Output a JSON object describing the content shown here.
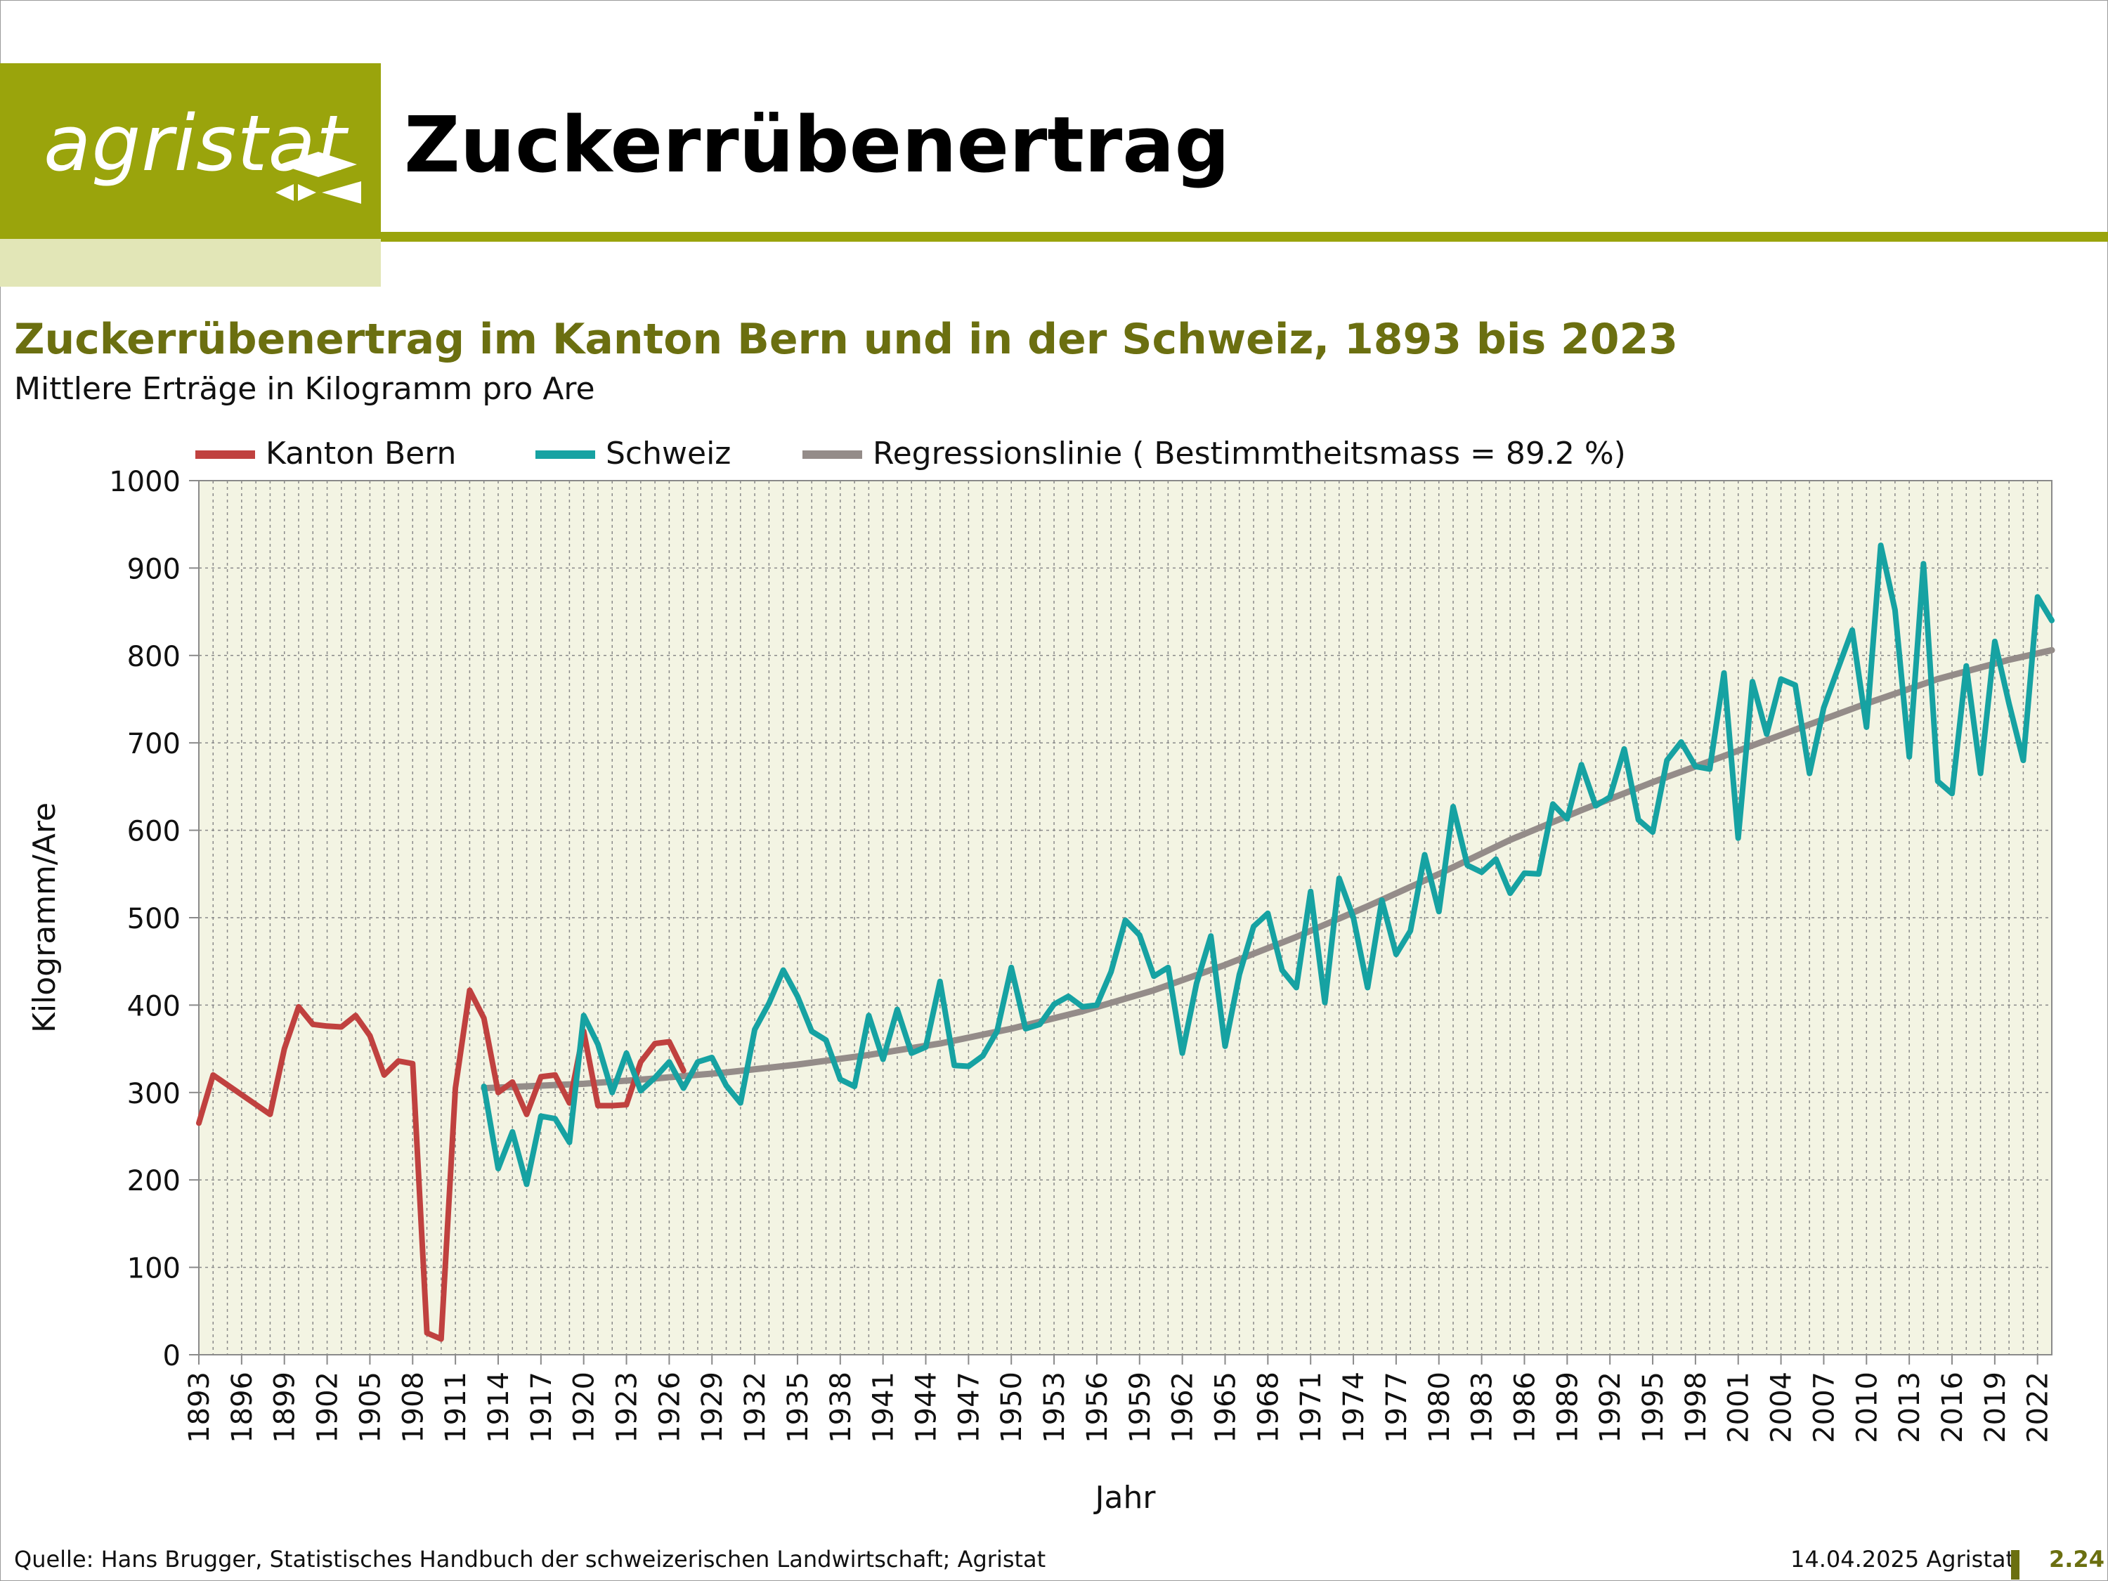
{
  "header": {
    "logo_text": "agristat",
    "title": "Zuckerrübenertrag"
  },
  "footer": {
    "source": "Quelle: Hans Brugger, Statistisches Handbuch der schweizerischen Landwirtschaft; Agristat",
    "date": "14.04.2025 Agristat",
    "page": "2.24"
  },
  "colors": {
    "brand": "#9aa40c",
    "brand_light": "#e2e6b7",
    "title": "#6b6f10",
    "plot_bg": "#f3f4e3",
    "bern": "#c0413f",
    "schweiz": "#16a2a2",
    "regression": "#948c89"
  },
  "chart_data": {
    "type": "line",
    "title": "Zuckerrübenertrag im Kanton Bern und in der Schweiz, 1893 bis 2023",
    "subtitle": "Mittlere Erträge in Kilogramm pro Are",
    "xlabel": "Jahr",
    "ylabel": "Kilogramm/Are",
    "xlim": [
      1893,
      2023
    ],
    "ylim": [
      0,
      1000
    ],
    "yticks": [
      0,
      100,
      200,
      300,
      400,
      500,
      600,
      700,
      800,
      900,
      1000
    ],
    "xticks": [
      "1893",
      "1896",
      "1899",
      "1902",
      "1905",
      "1908",
      "1911",
      "1914",
      "1917",
      "1920",
      "1923",
      "1926",
      "1929",
      "1932",
      "1935",
      "1938",
      "1941",
      "1944",
      "1947",
      "1950",
      "1953",
      "1956",
      "1959",
      "1962",
      "1965",
      "1968",
      "1971",
      "1974",
      "1977",
      "1980",
      "1983",
      "1986",
      "1989",
      "1992",
      "1995",
      "1998",
      "2001",
      "2004",
      "2007",
      "2010",
      "2013",
      "2016",
      "2019",
      "2022"
    ],
    "grid": true,
    "legend_position": "top",
    "series": [
      {
        "name": "Kanton Bern",
        "x": [
          1893,
          1894,
          1898,
          1899,
          1900,
          1901,
          1902,
          1903,
          1904,
          1905,
          1906,
          1907,
          1908,
          1909,
          1910,
          1911,
          1912,
          1913,
          1914,
          1915,
          1916,
          1917,
          1918,
          1919,
          1920,
          1921,
          1922,
          1923,
          1924,
          1925,
          1926,
          1927
        ],
        "y": [
          265,
          320,
          275,
          350,
          398,
          378,
          376,
          375,
          388,
          365,
          320,
          336,
          333,
          25,
          18,
          305,
          417,
          385,
          300,
          312,
          275,
          318,
          320,
          288,
          370,
          285,
          285,
          286,
          335,
          356,
          358,
          325
        ]
      },
      {
        "name": "Schweiz",
        "x": [
          1913,
          1914,
          1915,
          1916,
          1917,
          1918,
          1919,
          1920,
          1921,
          1922,
          1923,
          1924,
          1925,
          1926,
          1927,
          1928,
          1929,
          1930,
          1931,
          1932,
          1933,
          1934,
          1935,
          1936,
          1937,
          1938,
          1939,
          1940,
          1941,
          1942,
          1943,
          1944,
          1945,
          1946,
          1947,
          1948,
          1949,
          1950,
          1951,
          1952,
          1953,
          1954,
          1955,
          1956,
          1957,
          1958,
          1959,
          1960,
          1961,
          1962,
          1963,
          1964,
          1965,
          1966,
          1967,
          1968,
          1969,
          1970,
          1971,
          1972,
          1973,
          1974,
          1975,
          1976,
          1977,
          1978,
          1979,
          1980,
          1981,
          1982,
          1983,
          1984,
          1985,
          1986,
          1987,
          1988,
          1989,
          1990,
          1991,
          1992,
          1993,
          1994,
          1995,
          1996,
          1997,
          1998,
          1999,
          2000,
          2001,
          2002,
          2003,
          2004,
          2005,
          2006,
          2007,
          2008,
          2009,
          2010,
          2011,
          2012,
          2013,
          2014,
          2015,
          2016,
          2017,
          2018,
          2019,
          2020,
          2021,
          2022,
          2023
        ],
        "y": [
          307,
          213,
          255,
          195,
          273,
          270,
          243,
          388,
          355,
          300,
          345,
          302,
          317,
          335,
          305,
          335,
          340,
          308,
          288,
          372,
          402,
          440,
          410,
          370,
          360,
          315,
          307,
          388,
          338,
          395,
          345,
          352,
          427,
          331,
          330,
          342,
          370,
          443,
          373,
          378,
          401,
          410,
          398,
          400,
          438,
          497,
          480,
          433,
          443,
          345,
          425,
          479,
          353,
          435,
          490,
          505,
          440,
          420,
          530,
          403,
          545,
          500,
          420,
          520,
          458,
          485,
          572,
          507,
          627,
          560,
          552,
          567,
          528,
          551,
          550,
          630,
          613,
          675,
          628,
          638,
          693,
          612,
          598,
          680,
          701,
          673,
          670,
          780,
          591,
          770,
          710,
          773,
          766,
          665,
          740,
          785,
          829,
          718,
          926,
          852,
          684,
          905,
          656,
          642,
          788,
          665,
          816,
          745,
          680,
          867,
          840
        ]
      },
      {
        "name": "Regressionslinie ( Bestimmtheitsmass = 89.2 %)",
        "x": [
          1913,
          1920,
          1925,
          1930,
          1935,
          1940,
          1945,
          1950,
          1955,
          1960,
          1965,
          1970,
          1975,
          1980,
          1985,
          1990,
          1995,
          2000,
          2005,
          2010,
          2015,
          2020,
          2023
        ],
        "y": [
          305,
          310,
          316,
          323,
          332,
          343,
          356,
          373,
          393,
          417,
          446,
          478,
          513,
          550,
          589,
          623,
          655,
          685,
          715,
          745,
          773,
          795,
          806
        ]
      }
    ]
  }
}
